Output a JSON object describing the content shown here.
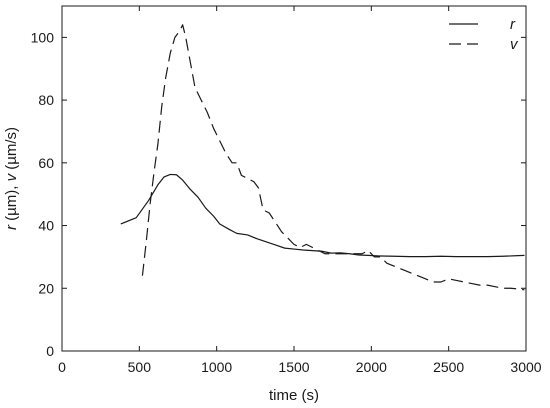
{
  "chart_data": {
    "type": "line",
    "xlabel": "time (s)",
    "ylabel": {
      "parts": [
        {
          "text": "r",
          "italic": true
        },
        {
          "text": " (µm), ",
          "italic": false
        },
        {
          "text": "v",
          "italic": true
        },
        {
          "text": " (µm/s)",
          "italic": false
        }
      ]
    },
    "xlim": [
      0,
      3000
    ],
    "ylim": [
      0,
      110
    ],
    "x_ticks": [
      0,
      500,
      1000,
      1500,
      2000,
      2500,
      3000
    ],
    "y_ticks": [
      0,
      20,
      40,
      60,
      80,
      100
    ],
    "grid": false,
    "legend_position": "top-right",
    "series": [
      {
        "name": "r",
        "style": "solid",
        "color": "#1a1a1a",
        "points": [
          [
            380,
            40.5
          ],
          [
            480,
            42.5
          ],
          [
            560,
            48
          ],
          [
            620,
            53
          ],
          [
            660,
            55.5
          ],
          [
            700,
            56.3
          ],
          [
            740,
            56.2
          ],
          [
            780,
            54.5
          ],
          [
            830,
            51.5
          ],
          [
            880,
            49
          ],
          [
            930,
            45.5
          ],
          [
            980,
            43
          ],
          [
            1020,
            40.5
          ],
          [
            1080,
            38.8
          ],
          [
            1130,
            37.5
          ],
          [
            1200,
            37
          ],
          [
            1260,
            35.8
          ],
          [
            1320,
            34.8
          ],
          [
            1380,
            33.8
          ],
          [
            1440,
            32.8
          ],
          [
            1500,
            32.5
          ],
          [
            1560,
            32.2
          ],
          [
            1620,
            32
          ],
          [
            1680,
            31.8
          ],
          [
            1740,
            31.2
          ],
          [
            1800,
            31.3
          ],
          [
            1860,
            31
          ],
          [
            1920,
            30.6
          ],
          [
            1980,
            30.5
          ],
          [
            2050,
            30.3
          ],
          [
            2150,
            30.2
          ],
          [
            2250,
            30.1
          ],
          [
            2350,
            30.1
          ],
          [
            2450,
            30.2
          ],
          [
            2550,
            30.1
          ],
          [
            2650,
            30.1
          ],
          [
            2750,
            30.1
          ],
          [
            2850,
            30.2
          ],
          [
            2950,
            30.4
          ],
          [
            2990,
            30.5
          ]
        ]
      },
      {
        "name": "v",
        "style": "dashed",
        "color": "#1a1a1a",
        "points": [
          [
            520,
            24
          ],
          [
            545,
            35
          ],
          [
            570,
            47
          ],
          [
            595,
            57
          ],
          [
            620,
            66
          ],
          [
            645,
            78
          ],
          [
            670,
            87
          ],
          [
            700,
            95
          ],
          [
            730,
            100
          ],
          [
            760,
            102
          ],
          [
            780,
            104
          ],
          [
            800,
            100
          ],
          [
            830,
            92
          ],
          [
            860,
            84
          ],
          [
            900,
            80
          ],
          [
            940,
            76
          ],
          [
            980,
            71
          ],
          [
            1020,
            67
          ],
          [
            1060,
            63
          ],
          [
            1100,
            60
          ],
          [
            1130,
            60
          ],
          [
            1160,
            56
          ],
          [
            1200,
            55
          ],
          [
            1240,
            54
          ],
          [
            1270,
            52
          ],
          [
            1300,
            45
          ],
          [
            1340,
            44
          ],
          [
            1380,
            41
          ],
          [
            1420,
            38
          ],
          [
            1460,
            36
          ],
          [
            1500,
            34
          ],
          [
            1540,
            33
          ],
          [
            1580,
            34
          ],
          [
            1620,
            33
          ],
          [
            1660,
            32
          ],
          [
            1700,
            31
          ],
          [
            1740,
            31
          ],
          [
            1780,
            31
          ],
          [
            1820,
            31
          ],
          [
            1860,
            31
          ],
          [
            1900,
            31
          ],
          [
            1940,
            31
          ],
          [
            1980,
            32
          ],
          [
            2020,
            30
          ],
          [
            2060,
            30
          ],
          [
            2100,
            28
          ],
          [
            2150,
            27
          ],
          [
            2200,
            26
          ],
          [
            2250,
            25
          ],
          [
            2300,
            24
          ],
          [
            2350,
            23
          ],
          [
            2400,
            22
          ],
          [
            2450,
            22
          ],
          [
            2500,
            23
          ],
          [
            2550,
            22.5
          ],
          [
            2600,
            22
          ],
          [
            2650,
            21.5
          ],
          [
            2700,
            21
          ],
          [
            2750,
            21
          ],
          [
            2800,
            20.5
          ],
          [
            2850,
            20
          ],
          [
            2900,
            20
          ],
          [
            2950,
            19.8
          ],
          [
            2990,
            19.5
          ]
        ]
      }
    ]
  }
}
